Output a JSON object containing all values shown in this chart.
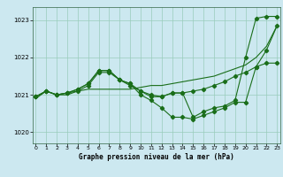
{
  "title": "",
  "xlabel": "Graphe pression niveau de la mer (hPa)",
  "ylabel": "",
  "bg_color": "#cce8f0",
  "line_color": "#1a6e1a",
  "grid_color": "#99ccbb",
  "ylim": [
    1019.7,
    1023.35
  ],
  "xlim": [
    -0.3,
    23.3
  ],
  "yticks": [
    1020,
    1021,
    1022,
    1023
  ],
  "xticks": [
    0,
    1,
    2,
    3,
    4,
    5,
    6,
    7,
    8,
    9,
    10,
    11,
    12,
    13,
    14,
    15,
    16,
    17,
    18,
    19,
    20,
    21,
    22,
    23
  ],
  "series": [
    {
      "y": [
        1020.9,
        1021.1,
        1021.0,
        1021.0,
        1021.1,
        1021.15,
        1021.15,
        1021.15,
        1021.15,
        1021.15,
        1021.2,
        1021.25,
        1021.25,
        1021.3,
        1021.35,
        1021.4,
        1021.45,
        1021.5,
        1021.6,
        1021.7,
        1021.8,
        1022.0,
        1022.3,
        1022.85
      ],
      "has_markers": false
    },
    {
      "y": [
        1020.95,
        1021.1,
        1021.0,
        1021.05,
        1021.15,
        1021.3,
        1021.65,
        1021.65,
        1021.4,
        1021.3,
        1021.1,
        1020.95,
        1020.95,
        1021.05,
        1021.05,
        1021.1,
        1021.15,
        1021.25,
        1021.35,
        1021.5,
        1021.6,
        1021.75,
        1021.85,
        1021.85
      ],
      "has_markers": true
    },
    {
      "y": [
        1020.95,
        1021.1,
        1021.0,
        1021.05,
        1021.15,
        1021.3,
        1021.65,
        1021.65,
        1021.4,
        1021.3,
        1021.0,
        1020.85,
        1020.65,
        1020.4,
        1020.4,
        1020.35,
        1020.45,
        1020.55,
        1020.65,
        1020.8,
        1020.8,
        1021.75,
        1022.2,
        1022.85
      ],
      "has_markers": true
    },
    {
      "y": [
        1020.95,
        1021.1,
        1021.0,
        1021.05,
        1021.1,
        1021.25,
        1021.6,
        1021.6,
        1021.4,
        1021.25,
        1021.1,
        1021.0,
        1020.95,
        1021.05,
        1021.05,
        1020.4,
        1020.55,
        1020.65,
        1020.7,
        1020.85,
        1022.0,
        1023.05,
        1023.1,
        1023.1
      ],
      "has_markers": true
    }
  ]
}
